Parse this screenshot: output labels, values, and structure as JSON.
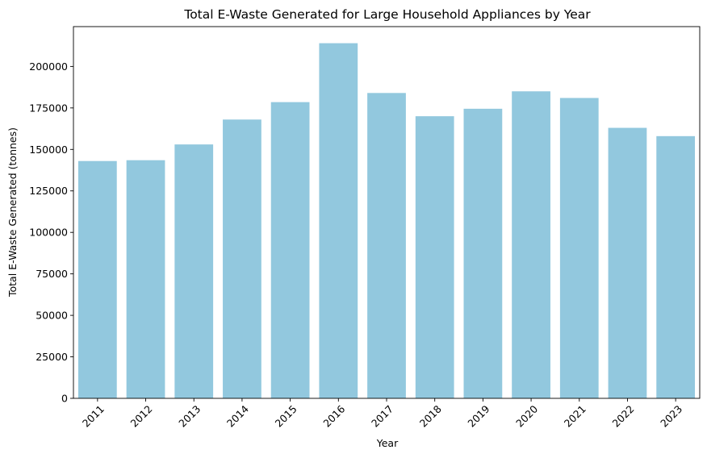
{
  "chart_data": {
    "type": "bar",
    "title": "Total E-Waste Generated for Large Household Appliances by Year",
    "xlabel": "Year",
    "ylabel": "Total E-Waste Generated (tonnes)",
    "categories": [
      "2011",
      "2012",
      "2013",
      "2014",
      "2015",
      "2016",
      "2017",
      "2018",
      "2019",
      "2020",
      "2021",
      "2022",
      "2023"
    ],
    "values": [
      143000,
      143500,
      153000,
      168000,
      178500,
      214000,
      184000,
      170000,
      174500,
      185000,
      181000,
      163000,
      158000
    ],
    "ylim": [
      0,
      224000
    ],
    "yticks": [
      0,
      25000,
      50000,
      75000,
      100000,
      125000,
      150000,
      175000,
      200000
    ],
    "bar_color": "#92c8de",
    "grid": false,
    "xtick_rotation": 45
  }
}
